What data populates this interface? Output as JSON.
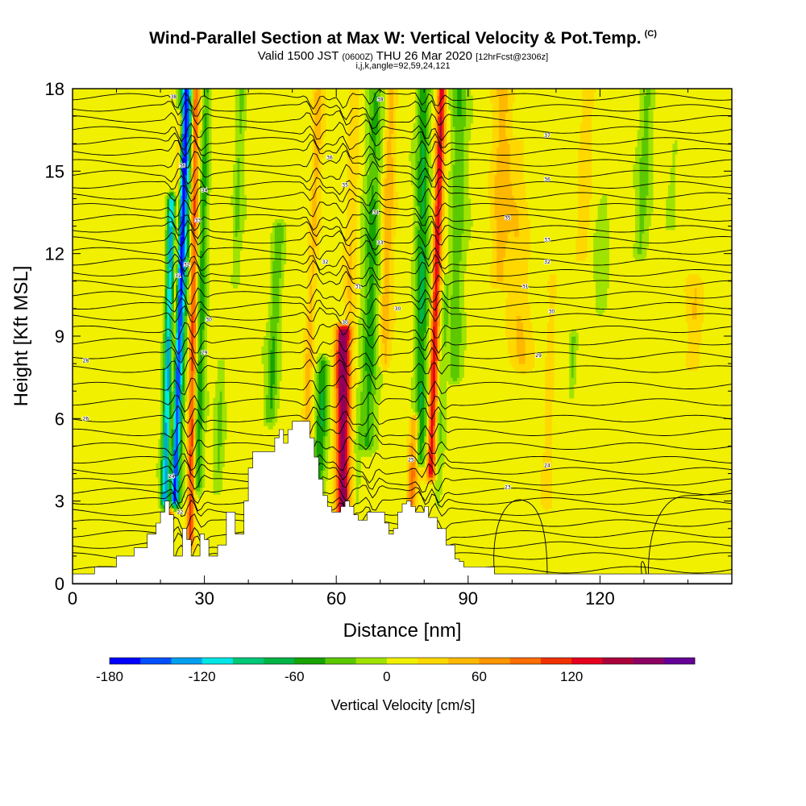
{
  "title": {
    "main": "Wind-Parallel Section at Max W: Vertical Velocity & Pot.Temp.",
    "copyright": "(C)",
    "valid_a": "Valid 1500 JST",
    "valid_b": "(0600Z)",
    "valid_c": "THU 26 Mar 2020",
    "valid_d": "[12hrFcst@2306z]",
    "indices": "i,j,k,angle=92,59,24,121"
  },
  "chart_data": {
    "type": "heatmap",
    "xlabel": "Distance [nm]",
    "ylabel": "Height [Kft MSL]",
    "xlim": [
      0,
      150
    ],
    "ylim": [
      0,
      18
    ],
    "x_ticks": [
      {
        "v": 0,
        "t": "0"
      },
      {
        "v": 30,
        "t": "30"
      },
      {
        "v": 60,
        "t": "60"
      },
      {
        "v": 90,
        "t": "90"
      },
      {
        "v": 120,
        "t": "120"
      }
    ],
    "y_ticks": [
      {
        "v": 0,
        "t": "0"
      },
      {
        "v": 3,
        "t": "3"
      },
      {
        "v": 6,
        "t": "6"
      },
      {
        "v": 9,
        "t": "9"
      },
      {
        "v": 12,
        "t": "12"
      },
      {
        "v": 15,
        "t": "15"
      },
      {
        "v": 18,
        "t": "18"
      }
    ],
    "x_minor_step": 10,
    "y_minor_step": 1,
    "background_value": 10,
    "terrain": [
      [
        0,
        0.35
      ],
      [
        5,
        0.35
      ],
      [
        5,
        0.6
      ],
      [
        10,
        0.6
      ],
      [
        10,
        1.0
      ],
      [
        14,
        1.3
      ],
      [
        17,
        1.8
      ],
      [
        19,
        2.2
      ],
      [
        20,
        2.6
      ],
      [
        21,
        3.0
      ],
      [
        22,
        2.5
      ],
      [
        23,
        1.0
      ],
      [
        24,
        1.0
      ],
      [
        25,
        2.0
      ],
      [
        26,
        1.6
      ],
      [
        27,
        1.0
      ],
      [
        28,
        1.0
      ],
      [
        29,
        1.8
      ],
      [
        30,
        1.6
      ],
      [
        31,
        1.0
      ],
      [
        33,
        1.4
      ],
      [
        35,
        2.6
      ],
      [
        36,
        2.6
      ],
      [
        37,
        1.8
      ],
      [
        39,
        3.0
      ],
      [
        40,
        4.2
      ],
      [
        41,
        4.8
      ],
      [
        45,
        4.8
      ],
      [
        46,
        5.3
      ],
      [
        47,
        5.6
      ],
      [
        48,
        5.1
      ],
      [
        49,
        5.6
      ],
      [
        50,
        5.9
      ],
      [
        53,
        5.9
      ],
      [
        54,
        5.3
      ],
      [
        55,
        4.6
      ],
      [
        56,
        3.8
      ],
      [
        57,
        3.2
      ],
      [
        58,
        2.8
      ],
      [
        59,
        2.6
      ],
      [
        60,
        2.6
      ],
      [
        61,
        2.8
      ],
      [
        62,
        3.0
      ],
      [
        63,
        2.8
      ],
      [
        64,
        2.5
      ],
      [
        65,
        2.3
      ],
      [
        66,
        2.3
      ],
      [
        67,
        2.6
      ],
      [
        70,
        2.6
      ],
      [
        71,
        2.2
      ],
      [
        72,
        1.8
      ],
      [
        73,
        2.0
      ],
      [
        74,
        2.6
      ],
      [
        75,
        2.9
      ],
      [
        76,
        3.0
      ],
      [
        77,
        2.8
      ],
      [
        78,
        2.6
      ],
      [
        80,
        2.8
      ],
      [
        81,
        2.4
      ],
      [
        83,
        2.0
      ],
      [
        85,
        1.4
      ],
      [
        87,
        0.9
      ],
      [
        88,
        0.8
      ],
      [
        89,
        0.6
      ],
      [
        95,
        0.6
      ],
      [
        96,
        0.35
      ],
      [
        150,
        0.35
      ]
    ],
    "features": [
      {
        "x0": 23,
        "y0": 3.0,
        "x1": 26,
        "y1": 18,
        "w": 1.3,
        "amp": -180,
        "note": "strong downdraft band (blue)"
      },
      {
        "x0": 21,
        "y0": 3.0,
        "x1": 22.5,
        "y1": 14,
        "w": 0.9,
        "amp": -130,
        "note": "cyan downdraft"
      },
      {
        "x0": 22,
        "y0": 2.0,
        "x1": 24.5,
        "y1": 17,
        "w": 0.7,
        "amp": 85
      },
      {
        "x0": 26.8,
        "y0": 1.5,
        "x1": 28,
        "y1": 18,
        "w": 0.8,
        "amp": 95
      },
      {
        "x0": 28.5,
        "y0": 3.5,
        "x1": 30.5,
        "y1": 18,
        "w": 1.0,
        "amp": -60
      },
      {
        "x0": 33,
        "y0": 3.5,
        "x1": 34,
        "y1": 8,
        "w": 1.0,
        "amp": -30
      },
      {
        "x0": 37,
        "y0": 11,
        "x1": 38.5,
        "y1": 18,
        "w": 1.0,
        "amp": -30
      },
      {
        "x0": 45,
        "y0": 6,
        "x1": 47,
        "y1": 13,
        "w": 1.3,
        "amp": -50
      },
      {
        "x0": 53,
        "y0": 4.5,
        "x1": 56,
        "y1": 18,
        "w": 1.0,
        "amp": 40
      },
      {
        "x0": 56,
        "y0": 3.5,
        "x1": 57,
        "y1": 8,
        "w": 1.3,
        "amp": -65
      },
      {
        "x0": 61.5,
        "y0": 2.2,
        "x1": 61.5,
        "y1": 9.2,
        "w": 1.6,
        "amp": 160,
        "note": "updraft core (purple)"
      },
      {
        "x0": 63,
        "y0": 9,
        "x1": 64,
        "y1": 18,
        "w": 1.2,
        "amp": 30
      },
      {
        "x0": 64.5,
        "y0": 2.5,
        "x1": 65,
        "y1": 7,
        "w": 1.0,
        "amp": -20
      },
      {
        "x0": 67,
        "y0": 5,
        "x1": 69,
        "y1": 18,
        "w": 1.8,
        "amp": -55
      },
      {
        "x0": 71,
        "y0": 8,
        "x1": 72.5,
        "y1": 18,
        "w": 1.2,
        "amp": 40
      },
      {
        "x0": 77,
        "y0": 2.8,
        "x1": 78,
        "y1": 6,
        "w": 1.0,
        "amp": 75
      },
      {
        "x0": 79,
        "y0": 4.5,
        "x1": 80,
        "y1": 18,
        "w": 1.5,
        "amp": -70
      },
      {
        "x0": 81.5,
        "y0": 4.0,
        "x1": 84,
        "y1": 18,
        "w": 0.9,
        "amp": 125
      },
      {
        "x0": 83,
        "y0": 3.0,
        "x1": 85,
        "y1": 11,
        "w": 0.8,
        "amp": -25
      },
      {
        "x0": 87,
        "y0": 7.5,
        "x1": 88,
        "y1": 18,
        "w": 1.8,
        "amp": -45
      },
      {
        "x0": 97,
        "y0": 11,
        "x1": 98,
        "y1": 18,
        "w": 2.0,
        "amp": 35
      },
      {
        "x0": 102,
        "y0": 8,
        "x1": 101,
        "y1": 16,
        "w": 2.5,
        "amp": 25
      },
      {
        "x0": 108,
        "y0": 3,
        "x1": 109,
        "y1": 11,
        "w": 1.0,
        "amp": 25
      },
      {
        "x0": 116,
        "y0": 12,
        "x1": 117,
        "y1": 18,
        "w": 1.5,
        "amp": 30
      },
      {
        "x0": 113.5,
        "y0": 7,
        "x1": 114,
        "y1": 9,
        "w": 0.8,
        "amp": -35
      },
      {
        "x0": 120,
        "y0": 10,
        "x1": 121,
        "y1": 14,
        "w": 1.5,
        "amp": -20
      },
      {
        "x0": 129,
        "y0": 12,
        "x1": 131,
        "y1": 18,
        "w": 1.5,
        "amp": -35
      },
      {
        "x0": 136,
        "y0": 13,
        "x1": 137,
        "y1": 16,
        "w": 1.2,
        "amp": -20
      },
      {
        "x0": 141,
        "y0": 8,
        "x1": 142,
        "y1": 11,
        "w": 1.5,
        "amp": 25
      }
    ],
    "isentropes": {
      "base_y": [
        0.5,
        1.0,
        1.4,
        1.8,
        2.2,
        2.6,
        3.0,
        3.35,
        3.7,
        4.1,
        4.5,
        5.0,
        5.5,
        6.0,
        6.6,
        7.2,
        7.8,
        8.3,
        8.8,
        9.25,
        9.7,
        10.1,
        10.5,
        10.9,
        11.3,
        11.7,
        12.1,
        12.5,
        12.9,
        13.3,
        13.7,
        14.1,
        14.5,
        14.9,
        15.3,
        15.7,
        16.1,
        16.5,
        16.9,
        17.3,
        17.7
      ],
      "wave_centers": [
        24,
        28,
        55,
        62,
        68,
        80,
        83
      ]
    },
    "contour_labels": [
      {
        "x": 3,
        "y": 8.1,
        "t": "28"
      },
      {
        "x": 3,
        "y": 6.0,
        "t": "26"
      },
      {
        "x": 23,
        "y": 17.7,
        "t": "38"
      },
      {
        "x": 25,
        "y": 15.2,
        "t": "36"
      },
      {
        "x": 30,
        "y": 14.3,
        "t": "34"
      },
      {
        "x": 28.5,
        "y": 13.2,
        "t": "33"
      },
      {
        "x": 26,
        "y": 11.6,
        "t": "32"
      },
      {
        "x": 24,
        "y": 11.2,
        "t": "31"
      },
      {
        "x": 31,
        "y": 9.6,
        "t": "30"
      },
      {
        "x": 30,
        "y": 8.4,
        "t": "29"
      },
      {
        "x": 22.5,
        "y": 3.9,
        "t": "24"
      },
      {
        "x": 24.5,
        "y": 2.6,
        "t": "22"
      },
      {
        "x": 70,
        "y": 17.6,
        "t": "38"
      },
      {
        "x": 58.5,
        "y": 15.5,
        "t": "36"
      },
      {
        "x": 62,
        "y": 14.5,
        "t": "35"
      },
      {
        "x": 69,
        "y": 13.5,
        "t": "34"
      },
      {
        "x": 70,
        "y": 12.4,
        "t": "33"
      },
      {
        "x": 57.5,
        "y": 11.7,
        "t": "32"
      },
      {
        "x": 65,
        "y": 10.8,
        "t": "31"
      },
      {
        "x": 62,
        "y": 9.5,
        "t": "30"
      },
      {
        "x": 74,
        "y": 10.0,
        "t": "30"
      },
      {
        "x": 77,
        "y": 4.5,
        "t": "25"
      },
      {
        "x": 108,
        "y": 16.3,
        "t": "37"
      },
      {
        "x": 108,
        "y": 14.7,
        "t": "36"
      },
      {
        "x": 99,
        "y": 13.3,
        "t": "35"
      },
      {
        "x": 108,
        "y": 12.5,
        "t": "33"
      },
      {
        "x": 108,
        "y": 11.7,
        "t": "32"
      },
      {
        "x": 103,
        "y": 10.8,
        "t": "31"
      },
      {
        "x": 109,
        "y": 9.9,
        "t": "30"
      },
      {
        "x": 106,
        "y": 8.3,
        "t": "29"
      },
      {
        "x": 108,
        "y": 4.3,
        "t": "24"
      },
      {
        "x": 99,
        "y": 3.5,
        "t": "23"
      }
    ]
  },
  "colorbar": {
    "colors": [
      "#0000FF",
      "#0050FF",
      "#00A0F0",
      "#00E6E6",
      "#00C878",
      "#00B446",
      "#17A300",
      "#5CC800",
      "#A0E200",
      "#F0F000",
      "#FFD800",
      "#FFB800",
      "#FF9600",
      "#FF6E00",
      "#F03200",
      "#E6001E",
      "#AA003C",
      "#8C0064",
      "#640096"
    ],
    "min": -180,
    "step": 20,
    "labels": [
      {
        "v": -180,
        "t": "-180"
      },
      {
        "v": -120,
        "t": "-120"
      },
      {
        "v": -60,
        "t": "-60"
      },
      {
        "v": 0,
        "t": "0"
      },
      {
        "v": 60,
        "t": "60"
      },
      {
        "v": 120,
        "t": "120"
      }
    ],
    "title": "Vertical Velocity [cm/s]"
  }
}
